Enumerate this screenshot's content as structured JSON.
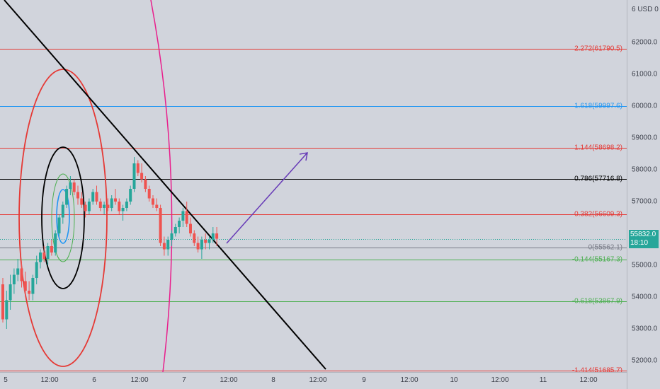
{
  "axis": {
    "currency": "6 USD 0",
    "price_ticks": [
      "62000.0",
      "61000.0",
      "60000.0",
      "59000.0",
      "58000.0",
      "57000.0",
      "56000.0",
      "55000.0",
      "54000.0",
      "53000.0",
      "52000.0"
    ],
    "time_ticks": [
      "5",
      "12:00",
      "6",
      "12:00",
      "7",
      "12:00",
      "8",
      "12:00",
      "9",
      "12:00",
      "10",
      "12:00",
      "11",
      "12:00"
    ]
  },
  "last_price": {
    "value": "55832.0",
    "countdown": "18:10",
    "color": "#26a69a"
  },
  "fib_levels": [
    {
      "label": "2.272(61790.5)",
      "price": 61790.5,
      "color": "#e53935"
    },
    {
      "label": "1.618(59997.6)",
      "price": 59997.6,
      "color": "#2196f3"
    },
    {
      "label": "1.144(58698.2)",
      "price": 58698.2,
      "color": "#e53935"
    },
    {
      "label": "0.786(57716.8)",
      "price": 57716.8,
      "color": "#000000"
    },
    {
      "label": "0.382(56609.3)",
      "price": 56609.3,
      "color": "#e53935"
    },
    {
      "label": "0(55562.1)",
      "price": 55562.1,
      "color": "#787b86"
    },
    {
      "label": "-0.144(55167.3)",
      "price": 55167.3,
      "color": "#4caf50"
    },
    {
      "label": "-0.618(53867.9)",
      "price": 53867.9,
      "color": "#4caf50"
    },
    {
      "label": "-1.414(51685.7)",
      "price": 51685.7,
      "color": "#e53935"
    }
  ],
  "colors": {
    "bull": "#26a69a",
    "bear": "#ef5350",
    "trendline": "#000000",
    "arc": "#e91e8c",
    "arrow": "#673ab7"
  },
  "chart_data": {
    "type": "candlestick",
    "title": "",
    "ylim": [
      51685.7,
      62500
    ],
    "candles": [
      [
        54400,
        54600,
        53200,
        53300
      ],
      [
        53300,
        54200,
        53000,
        53900
      ],
      [
        53900,
        54700,
        53600,
        54400
      ],
      [
        54400,
        54900,
        54100,
        54700
      ],
      [
        54700,
        55200,
        54500,
        54900
      ],
      [
        54900,
        55100,
        54300,
        54500
      ],
      [
        54500,
        54800,
        54000,
        54200
      ],
      [
        54200,
        54500,
        53900,
        54100
      ],
      [
        54100,
        54700,
        53900,
        54600
      ],
      [
        54600,
        55300,
        54400,
        55100
      ],
      [
        55100,
        55500,
        54900,
        55400
      ],
      [
        55400,
        55600,
        55100,
        55200
      ],
      [
        55200,
        55700,
        55000,
        55600
      ],
      [
        55600,
        55800,
        55300,
        55400
      ],
      [
        55400,
        56100,
        55300,
        56000
      ],
      [
        56000,
        56600,
        55900,
        56500
      ],
      [
        56500,
        57000,
        56300,
        56900
      ],
      [
        56900,
        57500,
        56800,
        57400
      ],
      [
        57400,
        57800,
        57200,
        57600
      ],
      [
        57600,
        57700,
        57200,
        57300
      ],
      [
        57300,
        57500,
        56900,
        57100
      ],
      [
        57100,
        57300,
        56800,
        56900
      ],
      [
        56900,
        57000,
        56500,
        56700
      ],
      [
        56700,
        57100,
        56600,
        57000
      ],
      [
        57000,
        57400,
        56900,
        57300
      ],
      [
        57300,
        57500,
        56900,
        57000
      ],
      [
        57000,
        57100,
        56700,
        56800
      ],
      [
        56800,
        57000,
        56600,
        56900
      ],
      [
        56900,
        57100,
        56700,
        56800
      ],
      [
        56800,
        57200,
        56700,
        57100
      ],
      [
        57100,
        57400,
        56900,
        57000
      ],
      [
        57000,
        57100,
        56600,
        56700
      ],
      [
        56700,
        56900,
        56400,
        56800
      ],
      [
        56800,
        57100,
        56700,
        57000
      ],
      [
        57000,
        57500,
        56900,
        57400
      ],
      [
        57400,
        58400,
        57300,
        58200
      ],
      [
        58200,
        58300,
        57800,
        57900
      ],
      [
        57900,
        58200,
        57600,
        57700
      ],
      [
        57700,
        57800,
        57300,
        57400
      ],
      [
        57400,
        57500,
        57000,
        57100
      ],
      [
        57100,
        57200,
        56800,
        56900
      ],
      [
        56900,
        57100,
        56700,
        56800
      ],
      [
        56800,
        56900,
        55600,
        55700
      ],
      [
        55700,
        55900,
        55300,
        55500
      ],
      [
        55500,
        55900,
        55300,
        55800
      ],
      [
        55800,
        56100,
        55600,
        56000
      ],
      [
        56000,
        56300,
        55900,
        56200
      ],
      [
        56200,
        56500,
        56000,
        56400
      ],
      [
        56400,
        56800,
        56200,
        56700
      ],
      [
        56700,
        57000,
        56200,
        56300
      ],
      [
        56300,
        56500,
        55900,
        56000
      ],
      [
        56000,
        56100,
        55600,
        55700
      ],
      [
        55700,
        55900,
        55400,
        55500
      ],
      [
        55500,
        55900,
        55200,
        55800
      ],
      [
        55800,
        56000,
        55500,
        55700
      ],
      [
        55700,
        55900,
        55500,
        55800
      ],
      [
        55800,
        56200,
        55700,
        56000
      ],
      [
        56000,
        56200,
        55600,
        55832
      ]
    ]
  }
}
